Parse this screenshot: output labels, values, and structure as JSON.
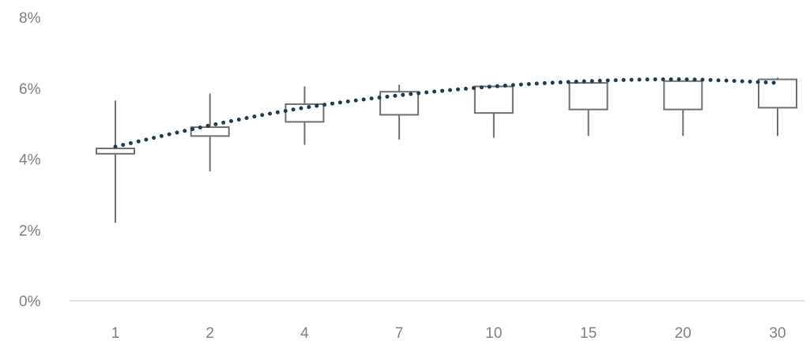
{
  "chart_data": {
    "type": "box",
    "categories": [
      "1",
      "2",
      "4",
      "7",
      "10",
      "15",
      "20",
      "30"
    ],
    "y_ticks": [
      "0%",
      "2%",
      "4%",
      "6%",
      "8%"
    ],
    "ylim": [
      0,
      8
    ],
    "grid": false,
    "boxes": [
      {
        "category": "1",
        "min": 2.2,
        "q1": 4.15,
        "q3": 4.3,
        "max": 5.65
      },
      {
        "category": "2",
        "min": 3.65,
        "q1": 4.65,
        "q3": 4.9,
        "max": 5.85
      },
      {
        "category": "4",
        "min": 4.4,
        "q1": 5.05,
        "q3": 5.55,
        "max": 6.05
      },
      {
        "category": "7",
        "min": 4.55,
        "q1": 5.25,
        "q3": 5.9,
        "max": 6.1
      },
      {
        "category": "10",
        "min": 4.6,
        "q1": 5.3,
        "q3": 6.05,
        "max": 6.05
      },
      {
        "category": "15",
        "min": 4.65,
        "q1": 5.4,
        "q3": 6.15,
        "max": 6.15
      },
      {
        "category": "20",
        "min": 4.65,
        "q1": 5.4,
        "q3": 6.2,
        "max": 6.2
      },
      {
        "category": "30",
        "min": 4.65,
        "q1": 5.45,
        "q3": 6.25,
        "max": 6.3
      }
    ],
    "trend": {
      "style": "dotted",
      "values": [
        4.35,
        4.95,
        5.45,
        5.8,
        6.05,
        6.2,
        6.25,
        6.15
      ]
    },
    "colors": {
      "box_stroke": "#707070",
      "trend": "#1f3b52",
      "axis": "#d9d9d9",
      "tick_text": "#7f7f7f"
    }
  }
}
